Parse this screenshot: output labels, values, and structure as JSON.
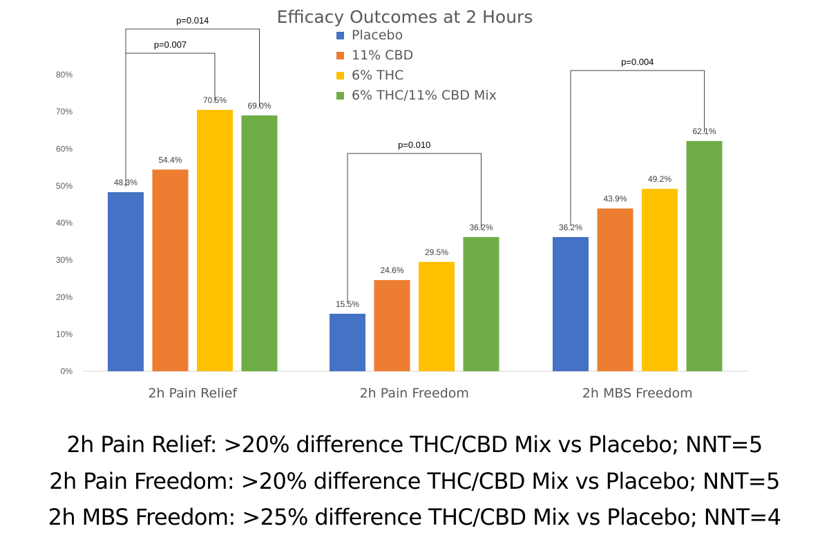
{
  "chart_data": {
    "type": "bar",
    "title": "Efficacy Outcomes at 2 Hours",
    "xlabel": "",
    "ylabel": "",
    "ylim": [
      0,
      80
    ],
    "y_ticks": [
      "0%",
      "10%",
      "20%",
      "30%",
      "40%",
      "50%",
      "60%",
      "70%",
      "80%"
    ],
    "legend_position": "top-center",
    "grid": false,
    "categories": [
      "2h Pain Relief",
      "2h Pain Freedom",
      "2h MBS Freedom"
    ],
    "series": [
      {
        "name": "Placebo",
        "color": "#4472C4",
        "values": [
          48.3,
          15.5,
          36.2
        ],
        "labels": [
          "48.3%",
          "15.5%",
          "36.2%"
        ]
      },
      {
        "name": "11% CBD",
        "color": "#ED7D31",
        "values": [
          54.4,
          24.6,
          43.9
        ],
        "labels": [
          "54.4%",
          "24.6%",
          "43.9%"
        ]
      },
      {
        "name": "6% THC",
        "color": "#FFC000",
        "values": [
          70.5,
          29.5,
          49.2
        ],
        "labels": [
          "70.5%",
          "29.5%",
          "49.2%"
        ]
      },
      {
        "name": "6% THC/11% CBD Mix",
        "color": "#70AD47",
        "values": [
          69.0,
          36.2,
          62.1
        ],
        "labels": [
          "69.0%",
          "36.2%",
          "62.1%"
        ]
      }
    ],
    "annotations": [
      {
        "text": "p=0.014",
        "category": 0,
        "from_series": 0,
        "to_series": 3
      },
      {
        "text": "p=0.007",
        "category": 0,
        "from_series": 0,
        "to_series": 2
      },
      {
        "text": "p=0.010",
        "category": 1,
        "from_series": 0,
        "to_series": 3
      },
      {
        "text": "p=0.004",
        "category": 2,
        "from_series": 0,
        "to_series": 3
      }
    ]
  },
  "summary": [
    "2h Pain Relief: >20% difference THC/CBD Mix vs Placebo; NNT=5",
    "2h Pain Freedom: >20% difference THC/CBD Mix vs Placebo; NNT=5",
    "2h MBS Freedom: >25% difference THC/CBD Mix vs Placebo; NNT=4"
  ]
}
